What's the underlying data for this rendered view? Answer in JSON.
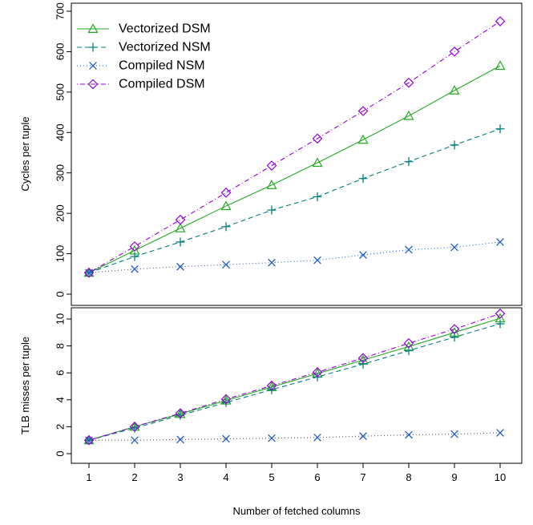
{
  "chart_data": [
    {
      "type": "line",
      "xlabel": "",
      "ylabel": "Cycles per tuple",
      "x": [
        1,
        2,
        3,
        4,
        5,
        6,
        7,
        8,
        9,
        10
      ],
      "ylim": [
        0,
        700
      ],
      "yticks": [
        "0",
        "100",
        "200",
        "300",
        "400",
        "500",
        "600",
        "700"
      ],
      "grid": false,
      "legend_position": "top-left",
      "series": [
        {
          "name": "Vectorized DSM",
          "color": "#22aa22",
          "marker": "triangle",
          "line": "solid",
          "values": [
            53,
            108,
            163,
            218,
            270,
            325,
            382,
            441,
            504,
            565
          ]
        },
        {
          "name": "Vectorized NSM",
          "color": "#008080",
          "marker": "plus",
          "line": "dashed",
          "values": [
            53,
            93,
            129,
            167,
            208,
            241,
            286,
            328,
            369,
            409
          ]
        },
        {
          "name": "Compiled NSM",
          "color": "#1f5fbf",
          "marker": "cross",
          "line": "dotted",
          "values": [
            53,
            62,
            68,
            73,
            78,
            84,
            97,
            110,
            116,
            129
          ]
        },
        {
          "name": "Compiled DSM",
          "color": "#9400d3",
          "marker": "diamond",
          "line": "dotdash",
          "values": [
            53,
            118,
            184,
            251,
            318,
            385,
            453,
            523,
            600,
            675
          ]
        }
      ]
    },
    {
      "type": "line",
      "xlabel": "Number of fetched columns",
      "ylabel": "TLB misses per tuple",
      "x": [
        1,
        2,
        3,
        4,
        5,
        6,
        7,
        8,
        9,
        10
      ],
      "xticks": [
        "1",
        "2",
        "3",
        "4",
        "5",
        "6",
        "7",
        "8",
        "9",
        "10"
      ],
      "ylim": [
        0,
        10
      ],
      "yticks": [
        "0",
        "2",
        "4",
        "6",
        "8",
        "10"
      ],
      "grid": false,
      "series": [
        {
          "name": "Vectorized DSM",
          "color": "#22aa22",
          "marker": "triangle",
          "line": "solid",
          "values": [
            1.0,
            2.0,
            2.95,
            3.95,
            4.95,
            5.95,
            6.95,
            7.95,
            9.0,
            10.05
          ]
        },
        {
          "name": "Vectorized NSM",
          "color": "#008080",
          "marker": "plus",
          "line": "dashed",
          "values": [
            1.0,
            1.9,
            2.85,
            3.8,
            4.75,
            5.7,
            6.65,
            7.65,
            8.65,
            9.65
          ]
        },
        {
          "name": "Compiled NSM",
          "color": "#1f5fbf",
          "marker": "cross",
          "line": "dotted",
          "values": [
            1.0,
            1.0,
            1.05,
            1.1,
            1.15,
            1.2,
            1.3,
            1.4,
            1.45,
            1.55
          ]
        },
        {
          "name": "Compiled DSM",
          "color": "#9400d3",
          "marker": "diamond",
          "line": "dotdash",
          "values": [
            1.0,
            2.0,
            3.0,
            4.05,
            5.05,
            6.05,
            7.1,
            8.2,
            9.25,
            10.4
          ]
        }
      ]
    }
  ]
}
